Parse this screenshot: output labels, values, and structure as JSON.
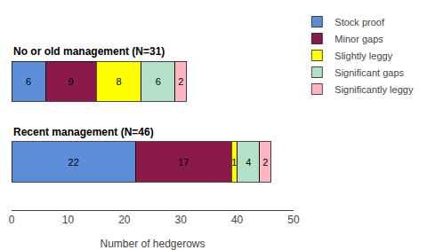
{
  "chart_data": {
    "type": "bar",
    "orientation": "horizontal",
    "stacked": true,
    "categories": [
      "Recent management (N=46)",
      "No or old management (N=31)"
    ],
    "series": [
      {
        "name": "Stock proof",
        "color": "#5b8dd9",
        "values": [
          22,
          6
        ]
      },
      {
        "name": "Minor gaps",
        "color": "#8b1a4a",
        "values": [
          17,
          9
        ]
      },
      {
        "name": "Slightly leggy",
        "color": "#ffff00",
        "values": [
          1,
          8
        ]
      },
      {
        "name": "Significant gaps",
        "color": "#b2e0c8",
        "values": [
          4,
          6
        ]
      },
      {
        "name": "Significantly leggy",
        "color": "#ffb6c1",
        "values": [
          2,
          2
        ]
      }
    ],
    "xlabel": "Number of hedgerows",
    "xlim": [
      0,
      50
    ],
    "xticks": [
      0,
      10,
      20,
      30,
      40,
      50
    ],
    "data_labels": true,
    "legend": "upper right",
    "grid": false,
    "tick_labels": "x"
  }
}
